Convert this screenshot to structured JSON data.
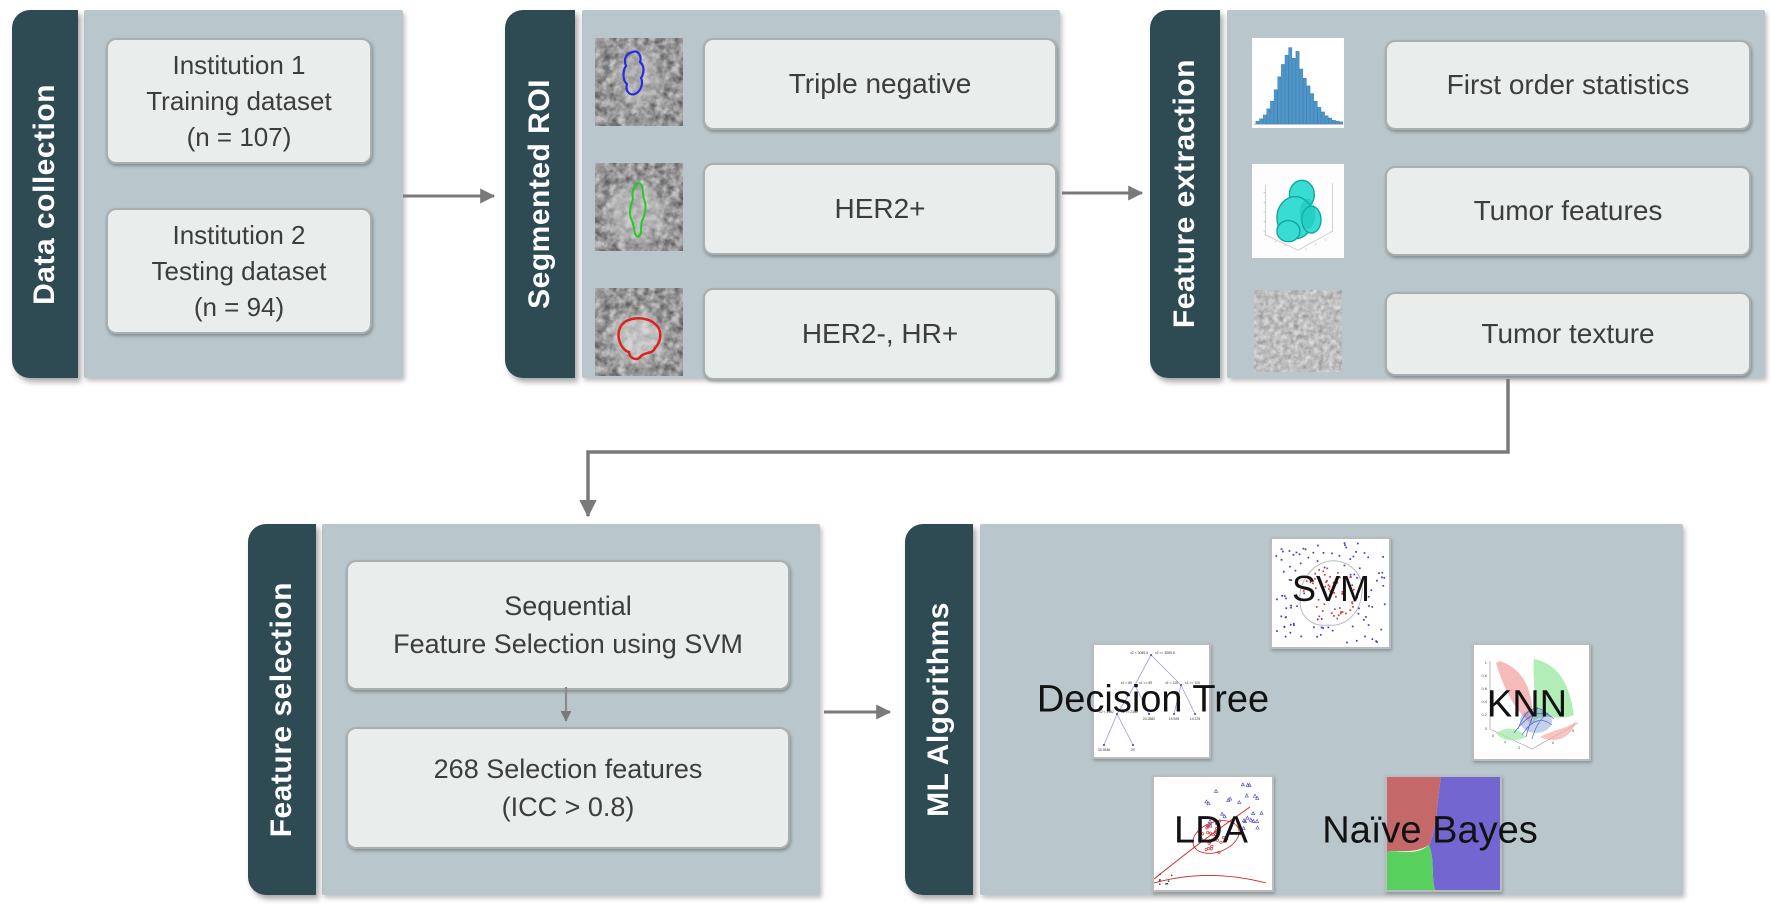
{
  "colors": {
    "label_bar": "#2e4b54",
    "panel_bg": "#b9c7cc",
    "box_bg": "#e9edec",
    "box_border": "#a9aeae",
    "arrow": "#7a7a7a",
    "box_text": "#3d3d3d",
    "roi_contour_triple_negative": "#2a2ae0",
    "roi_contour_her2_pos": "#22cc22",
    "roi_contour_her2_neg_hr_pos": "#dd2020",
    "histogram_bar": "#4d96c8",
    "tumor_3d": "#39dcd2",
    "naive_bayes_red": "#c4686a",
    "naive_bayes_blue": "#7366d1",
    "naive_bayes_green": "#58d05e"
  },
  "panels": {
    "data_collection": {
      "label": "Data collection",
      "boxes": [
        {
          "line1": "Institution 1",
          "line2": "Training dataset",
          "line3": "(n = 107)"
        },
        {
          "line1": "Institution 2",
          "line2": "Testing dataset",
          "line3": "(n = 94)"
        }
      ]
    },
    "segmented_roi": {
      "label": "Segmented ROI",
      "boxes": [
        "Triple negative",
        "HER2+",
        "HER2-, HR+"
      ]
    },
    "feature_extraction": {
      "label": "Feature extraction",
      "boxes": [
        "First order statistics",
        "Tumor features",
        "Tumor texture"
      ]
    },
    "feature_selection": {
      "label": "Feature selection",
      "box1": {
        "line1": "Sequential",
        "line2": "Feature Selection using SVM"
      },
      "box2": {
        "line1": "268 Selection features",
        "line2": "(ICC > 0.8)"
      }
    },
    "ml_algorithms": {
      "label": "ML Algorithms",
      "names": {
        "svm": "SVM",
        "decision_tree": "Decision Tree",
        "knn": "KNN",
        "lda": "LDA",
        "naive_bayes": "Naïve Bayes"
      }
    }
  },
  "decision_tree_plot": {
    "root_left": "x2 < 3085.5",
    "root_right": "x2 >= 3085.5",
    "n1_left": "x1 < 89",
    "n1_right": "x1 >= 89",
    "n2_left": "x1 < 115",
    "n2_right": "x1 >= 115",
    "n3_left": "x2 < 2162",
    "n3_right": "x2 >= 2162",
    "leaf1": "24.2882",
    "leaf2": "19.925",
    "leaf3": "14.375",
    "leaf4": "33.3936",
    "leaf5": "29"
  },
  "knn_plot": {
    "z_ticks": [
      "1",
      "0.8",
      "0.6",
      "0.4",
      "0.2",
      "0"
    ],
    "floor_ticks_left": [
      "5",
      "4",
      "3"
    ],
    "floor_ticks_right": [
      "6",
      "8"
    ]
  }
}
